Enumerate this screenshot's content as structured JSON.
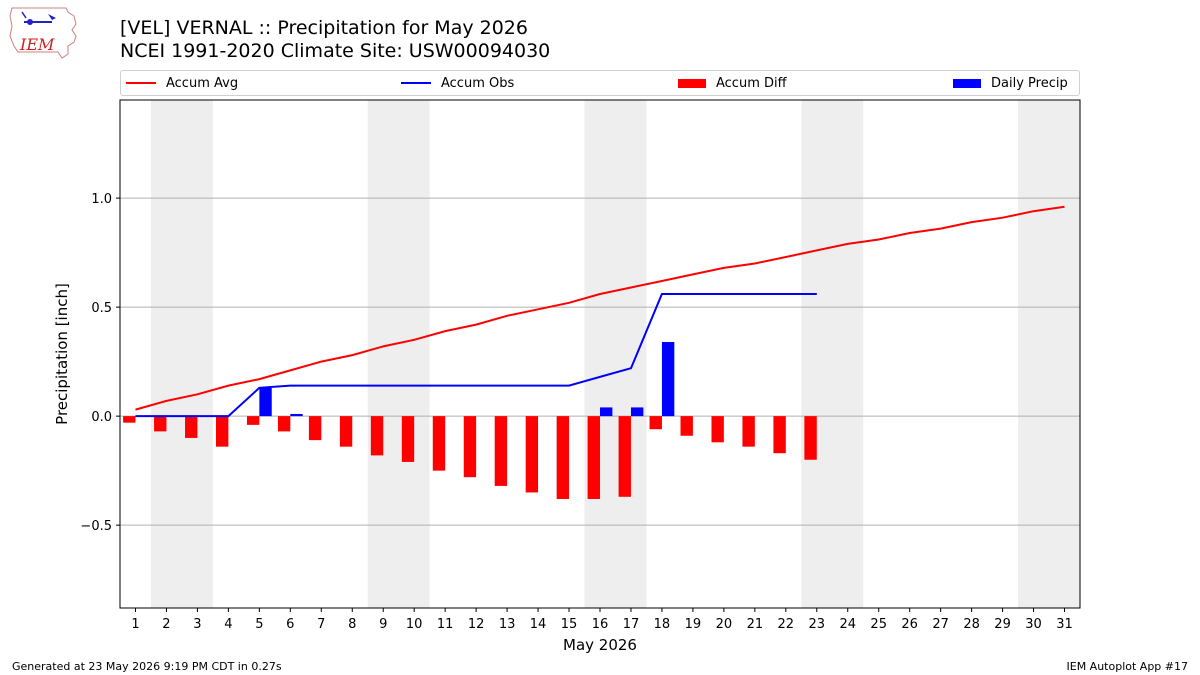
{
  "header": {
    "title_line1": "[VEL] VERNAL :: Precipitation for May 2026",
    "title_line2": "NCEI 1991-2020 Climate Site: USW00094030",
    "logo_text": "IEM"
  },
  "footer": {
    "left": "Generated at 23 May 2026 9:19 PM CDT in 0.27s",
    "right": "IEM Autoplot App #17"
  },
  "colors": {
    "avg": "#ff0000",
    "obs": "#0000ff",
    "diff": "#ff0000",
    "daily": "#0000ff",
    "weekend_band": "#eeeeee",
    "grid": "#b0b0b0"
  },
  "chart_data": {
    "type": "bar",
    "xlabel": "May 2026",
    "ylabel": "Precipitation [inch]",
    "ylim": [
      -0.88,
      1.45
    ],
    "xlim": [
      0.5,
      31.5
    ],
    "yticks": [
      -0.5,
      0.0,
      0.5,
      1.0
    ],
    "ytick_labels": [
      "−0.5",
      "0.0",
      "0.5",
      "1.0"
    ],
    "days": [
      1,
      2,
      3,
      4,
      5,
      6,
      7,
      8,
      9,
      10,
      11,
      12,
      13,
      14,
      15,
      16,
      17,
      18,
      19,
      20,
      21,
      22,
      23,
      24,
      25,
      26,
      27,
      28,
      29,
      30,
      31
    ],
    "grid": "horizontal",
    "legend_position": "top",
    "legend": [
      "Accum Avg",
      "Accum Obs",
      "Accum Diff",
      "Daily Precip"
    ],
    "weekend_bands": [
      [
        1.5,
        3.5
      ],
      [
        8.5,
        10.5
      ],
      [
        15.5,
        17.5
      ],
      [
        22.5,
        24.5
      ],
      [
        29.5,
        31.5
      ]
    ],
    "series": [
      {
        "name": "Accum Avg",
        "type": "line",
        "x": [
          1,
          2,
          3,
          4,
          5,
          6,
          7,
          8,
          9,
          10,
          11,
          12,
          13,
          14,
          15,
          16,
          17,
          18,
          19,
          20,
          21,
          22,
          23,
          24,
          25,
          26,
          27,
          28,
          29,
          30,
          31
        ],
        "values": [
          0.03,
          0.07,
          0.1,
          0.14,
          0.17,
          0.21,
          0.25,
          0.28,
          0.32,
          0.35,
          0.39,
          0.42,
          0.46,
          0.49,
          0.52,
          0.56,
          0.59,
          0.62,
          0.65,
          0.68,
          0.7,
          0.73,
          0.76,
          0.79,
          0.81,
          0.84,
          0.86,
          0.89,
          0.91,
          0.94,
          0.96
        ]
      },
      {
        "name": "Accum Obs",
        "type": "line",
        "x": [
          1,
          2,
          3,
          4,
          5,
          6,
          7,
          8,
          9,
          10,
          11,
          12,
          13,
          14,
          15,
          16,
          17,
          18,
          19,
          20,
          21,
          22,
          23
        ],
        "values": [
          0.0,
          0.0,
          0.0,
          0.0,
          0.13,
          0.14,
          0.14,
          0.14,
          0.14,
          0.14,
          0.14,
          0.14,
          0.14,
          0.14,
          0.14,
          0.18,
          0.22,
          0.56,
          0.56,
          0.56,
          0.56,
          0.56,
          0.56
        ]
      },
      {
        "name": "Accum Diff",
        "type": "bar",
        "x": [
          1,
          2,
          3,
          4,
          5,
          6,
          7,
          8,
          9,
          10,
          11,
          12,
          13,
          14,
          15,
          16,
          17,
          18,
          19,
          20,
          21,
          22,
          23
        ],
        "values": [
          -0.03,
          -0.07,
          -0.1,
          -0.14,
          -0.04,
          -0.07,
          -0.11,
          -0.14,
          -0.18,
          -0.21,
          -0.25,
          -0.28,
          -0.32,
          -0.35,
          -0.38,
          -0.38,
          -0.37,
          -0.06,
          -0.09,
          -0.12,
          -0.14,
          -0.17,
          -0.2
        ]
      },
      {
        "name": "Daily Precip",
        "type": "bar",
        "x": [
          1,
          2,
          3,
          4,
          5,
          6,
          7,
          8,
          9,
          10,
          11,
          12,
          13,
          14,
          15,
          16,
          17,
          18,
          19,
          20,
          21,
          22,
          23
        ],
        "values": [
          0,
          0,
          0,
          0,
          0.13,
          0.01,
          0,
          0,
          0,
          0,
          0,
          0,
          0,
          0,
          0,
          0.04,
          0.04,
          0.34,
          0,
          0,
          0,
          0,
          0
        ]
      }
    ]
  }
}
